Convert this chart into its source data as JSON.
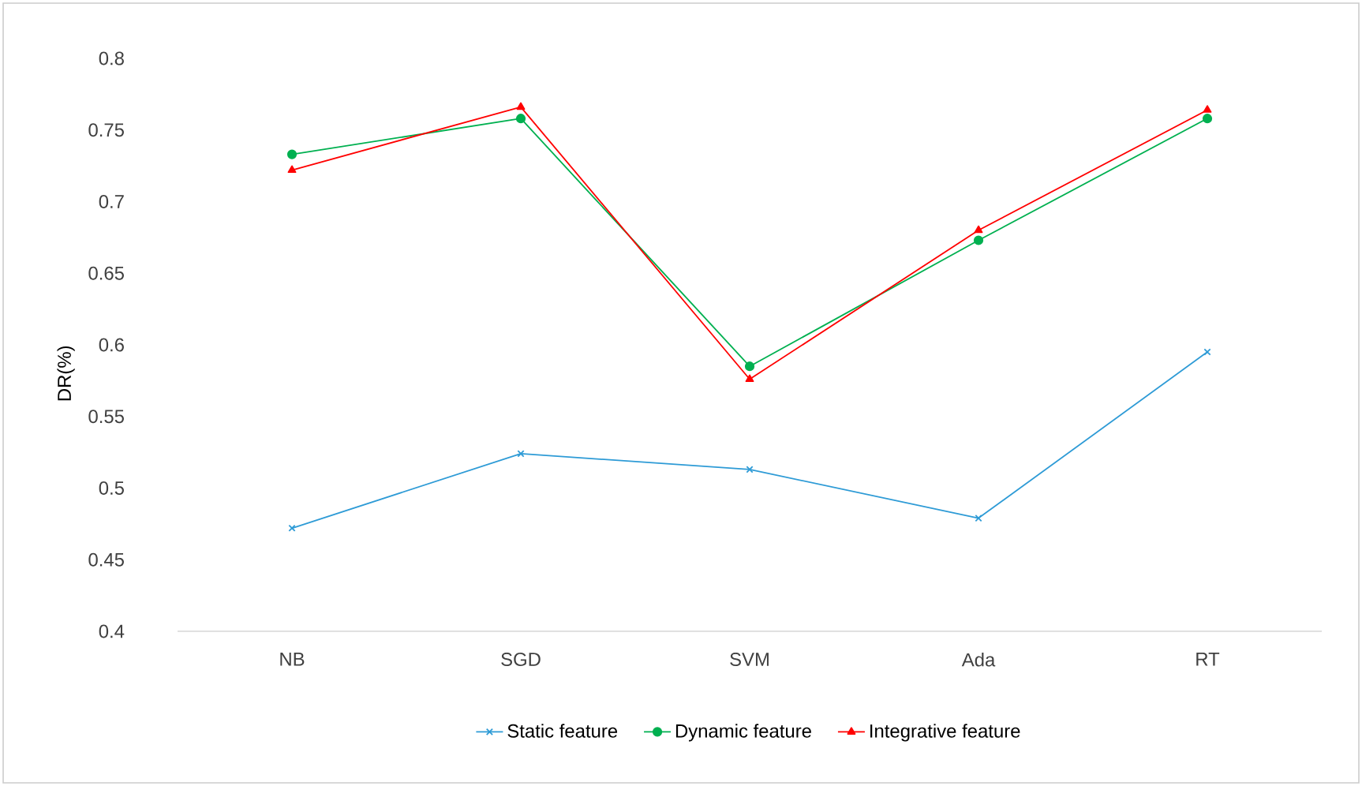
{
  "chart_data": {
    "type": "line",
    "ylabel": "DR(%)",
    "categories": [
      "NB",
      "SGD",
      "SVM",
      "Ada",
      "RT"
    ],
    "series": [
      {
        "name": "Static feature",
        "color": "#2e9bd6",
        "marker": "cross",
        "values": [
          0.472,
          0.524,
          0.513,
          0.479,
          0.595
        ]
      },
      {
        "name": "Dynamic feature",
        "color": "#00b050",
        "marker": "circle",
        "values": [
          0.733,
          0.758,
          0.585,
          0.673,
          0.758
        ]
      },
      {
        "name": "Integrative feature",
        "color": "#ff0000",
        "marker": "triangle",
        "values": [
          0.722,
          0.766,
          0.576,
          0.68,
          0.764
        ]
      }
    ],
    "ylim": [
      0.4,
      0.8
    ],
    "yticks": [
      0.4,
      0.45,
      0.5,
      0.55,
      0.6,
      0.65,
      0.7,
      0.75,
      0.8
    ],
    "grid": false,
    "legend": "bottom"
  }
}
